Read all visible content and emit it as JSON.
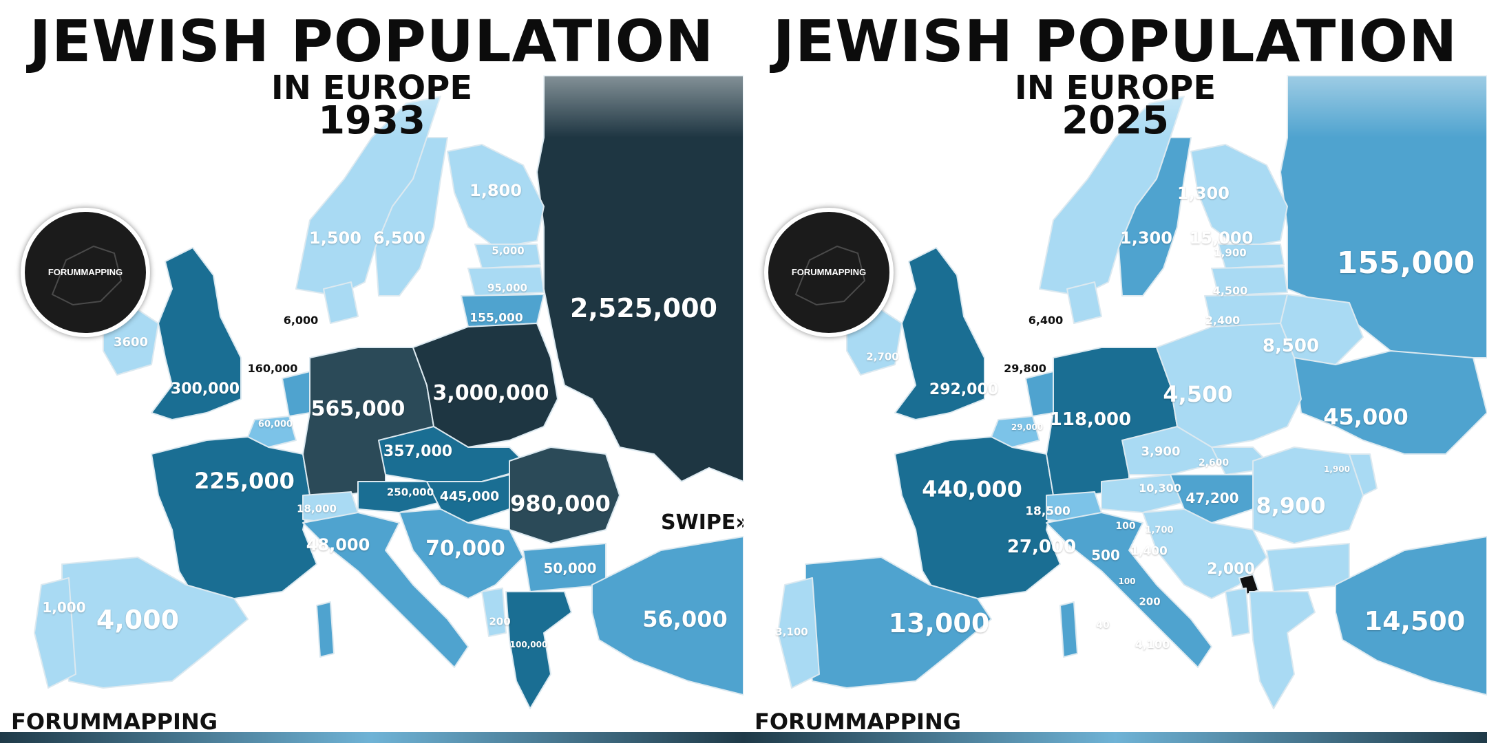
{
  "brand": "FORUMMAPPING",
  "logo_text": "FORUMMAPPING",
  "swipe": "SWIPE»",
  "palette": {
    "very_light": "#a9daf3",
    "light": "#7cc3e8",
    "medium": "#4fa3cf",
    "dark": "#1a6e93",
    "darker": "#2b4a58",
    "darkest": "#1e3642",
    "sea": "#ffffff"
  },
  "panels": [
    {
      "title": "JEWISH POPULATION",
      "subtitle": "IN EUROPE",
      "year": "1933",
      "labels": [
        {
          "text": "1,800",
          "c": "light"
        },
        {
          "text": "1,500",
          "c": "light"
        },
        {
          "text": "6,500",
          "c": "light"
        },
        {
          "text": "5,000",
          "c": "light"
        },
        {
          "text": "95,000",
          "c": "light"
        },
        {
          "text": "155,000",
          "c": "light"
        },
        {
          "text": "2,525,000",
          "c": "light"
        },
        {
          "text": "6,000",
          "c": "dark"
        },
        {
          "text": "3600",
          "c": "light"
        },
        {
          "text": "160,000",
          "c": "dark"
        },
        {
          "text": "300,000",
          "c": "light"
        },
        {
          "text": "60,000",
          "c": "light"
        },
        {
          "text": "565,000",
          "c": "light"
        },
        {
          "text": "3,000,000",
          "c": "light"
        },
        {
          "text": "357,000",
          "c": "light"
        },
        {
          "text": "225,000",
          "c": "light"
        },
        {
          "text": "250,000",
          "c": "light"
        },
        {
          "text": "445,000",
          "c": "light"
        },
        {
          "text": "980,000",
          "c": "light"
        },
        {
          "text": "18,000",
          "c": "light"
        },
        {
          "text": "48,000",
          "c": "light"
        },
        {
          "text": "70,000",
          "c": "light"
        },
        {
          "text": "50,000",
          "c": "light"
        },
        {
          "text": "4,000",
          "c": "light"
        },
        {
          "text": "1,000",
          "c": "light"
        },
        {
          "text": "56,000",
          "c": "light"
        },
        {
          "text": "200",
          "c": "light"
        },
        {
          "text": "100,000",
          "c": "light"
        }
      ]
    },
    {
      "title": "JEWISH POPULATION",
      "subtitle": "IN EUROPE",
      "year": "2025",
      "labels": [
        {
          "text": "1,300",
          "c": "light"
        },
        {
          "text": "1,300",
          "c": "light"
        },
        {
          "text": "15,000",
          "c": "light"
        },
        {
          "text": "1,900",
          "c": "light"
        },
        {
          "text": "155,000",
          "c": "light"
        },
        {
          "text": "4,500",
          "c": "light"
        },
        {
          "text": "2,400",
          "c": "light"
        },
        {
          "text": "8,500",
          "c": "light"
        },
        {
          "text": "6,400",
          "c": "dark"
        },
        {
          "text": "2,700",
          "c": "light"
        },
        {
          "text": "29,800",
          "c": "dark"
        },
        {
          "text": "292,000",
          "c": "light"
        },
        {
          "text": "29,000",
          "c": "light"
        },
        {
          "text": "118,000",
          "c": "light"
        },
        {
          "text": "4,500",
          "c": "light"
        },
        {
          "text": "45,000",
          "c": "light"
        },
        {
          "text": "3,900",
          "c": "light"
        },
        {
          "text": "2,600",
          "c": "light"
        },
        {
          "text": "1,900",
          "c": "light"
        },
        {
          "text": "440,000",
          "c": "light"
        },
        {
          "text": "10,300",
          "c": "light"
        },
        {
          "text": "47,200",
          "c": "light"
        },
        {
          "text": "8,900",
          "c": "light"
        },
        {
          "text": "18,500",
          "c": "light"
        },
        {
          "text": "100",
          "c": "light"
        },
        {
          "text": "1,700",
          "c": "light"
        },
        {
          "text": "27,000",
          "c": "light"
        },
        {
          "text": "500",
          "c": "light"
        },
        {
          "text": "1,400",
          "c": "light"
        },
        {
          "text": "2,000",
          "c": "light"
        },
        {
          "text": "100",
          "c": "light"
        },
        {
          "text": "200",
          "c": "light"
        },
        {
          "text": "13,000",
          "c": "light"
        },
        {
          "text": "3,100",
          "c": "light"
        },
        {
          "text": "40",
          "c": "light"
        },
        {
          "text": "4,100",
          "c": "light"
        },
        {
          "text": "14,500",
          "c": "light"
        }
      ]
    }
  ]
}
